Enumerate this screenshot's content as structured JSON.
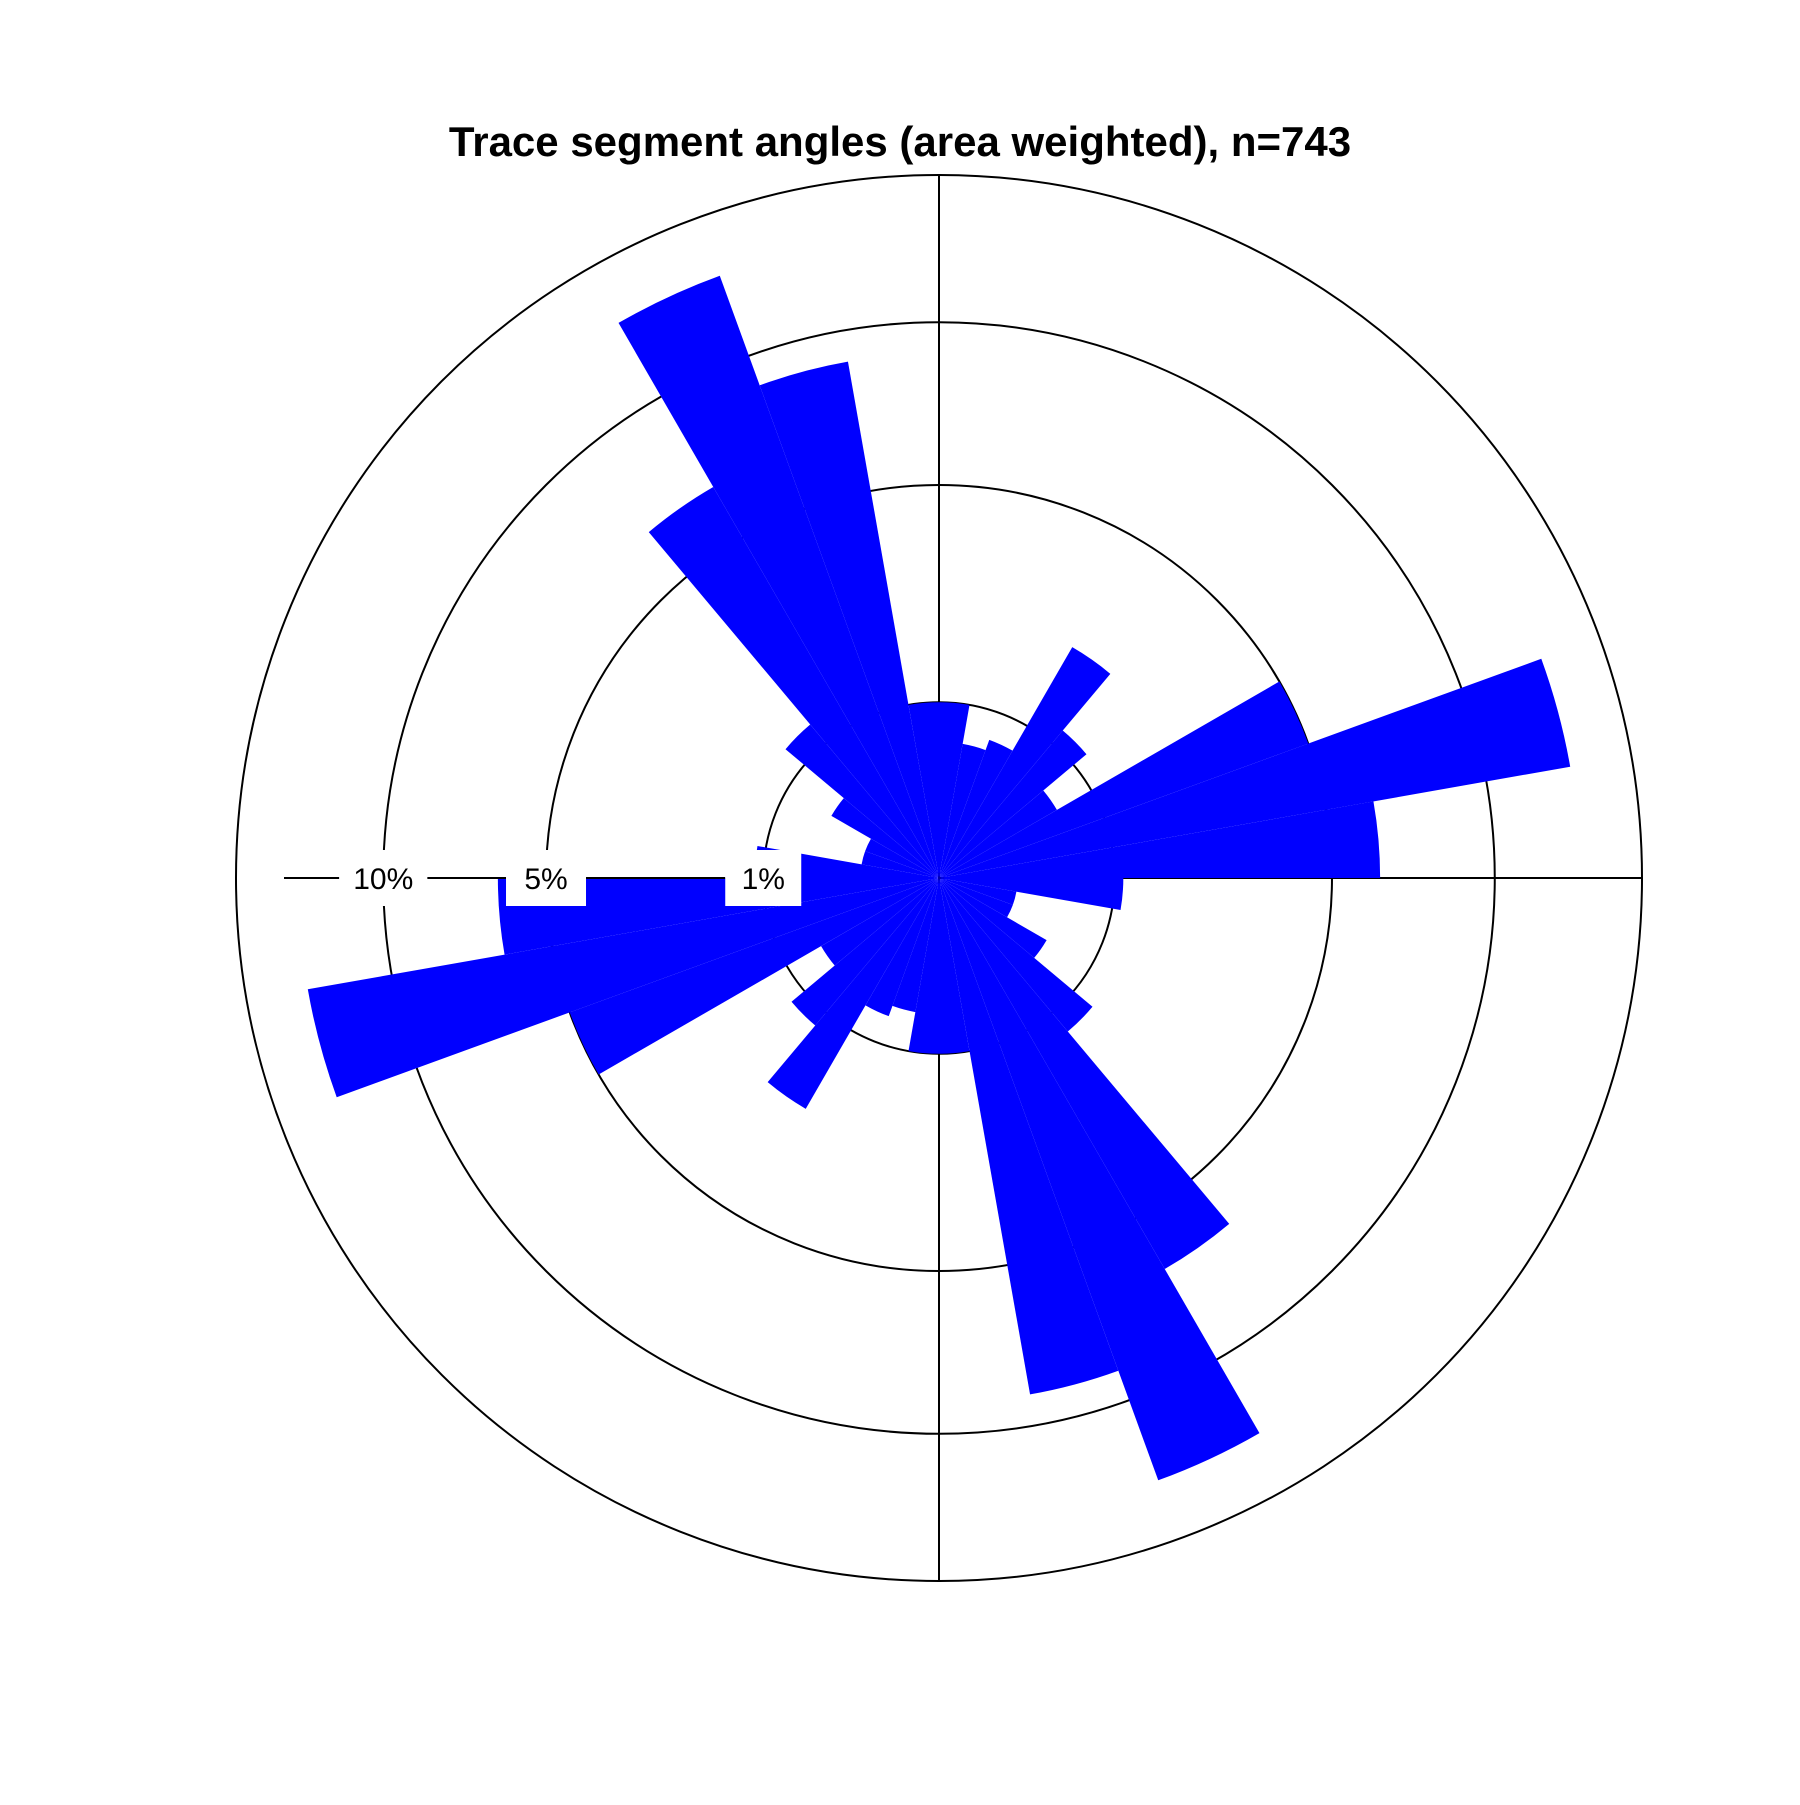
{
  "chart_data": {
    "type": "rose",
    "title": "Trace segment angles (area weighted), n=743",
    "bin_width_deg": 10,
    "scale": "sqrt",
    "bar_color": "#0000ff",
    "grid": true,
    "ring_labels": [
      "1%",
      "5%",
      "10%"
    ],
    "ring_values": [
      1,
      5,
      10
    ],
    "r_max": 16,
    "bins": [
      {
        "from": 0,
        "to": 10,
        "value": 1.0
      },
      {
        "from": 10,
        "to": 20,
        "value": 0.6
      },
      {
        "from": 20,
        "to": 30,
        "value": 0.7
      },
      {
        "from": 30,
        "to": 40,
        "value": 2.3
      },
      {
        "from": 40,
        "to": 50,
        "value": 1.2
      },
      {
        "from": 50,
        "to": 60,
        "value": 0.6
      },
      {
        "from": 60,
        "to": 70,
        "value": 5.0
      },
      {
        "from": 70,
        "to": 80,
        "value": 13.3
      },
      {
        "from": 80,
        "to": 90,
        "value": 6.3
      },
      {
        "from": 90,
        "to": 100,
        "value": 1.1
      },
      {
        "from": 100,
        "to": 110,
        "value": 0.2
      },
      {
        "from": 110,
        "to": 120,
        "value": 0.2
      },
      {
        "from": 120,
        "to": 130,
        "value": 0.5
      },
      {
        "from": 130,
        "to": 140,
        "value": 1.3
      },
      {
        "from": 140,
        "to": 150,
        "value": 6.6
      },
      {
        "from": 150,
        "to": 160,
        "value": 13.3
      },
      {
        "from": 160,
        "to": 170,
        "value": 8.9
      },
      {
        "from": 170,
        "to": 180,
        "value": 1.0
      },
      {
        "from": 180,
        "to": 190,
        "value": 1.0
      },
      {
        "from": 190,
        "to": 200,
        "value": 0.6
      },
      {
        "from": 200,
        "to": 210,
        "value": 0.7
      },
      {
        "from": 210,
        "to": 220,
        "value": 2.3
      },
      {
        "from": 220,
        "to": 230,
        "value": 1.2
      },
      {
        "from": 230,
        "to": 240,
        "value": 0.6
      },
      {
        "from": 240,
        "to": 250,
        "value": 5.0
      },
      {
        "from": 250,
        "to": 260,
        "value": 13.3
      },
      {
        "from": 260,
        "to": 270,
        "value": 6.3
      },
      {
        "from": 270,
        "to": 280,
        "value": 1.1
      },
      {
        "from": 280,
        "to": 290,
        "value": 0.2
      },
      {
        "from": 290,
        "to": 300,
        "value": 0.2
      },
      {
        "from": 300,
        "to": 310,
        "value": 0.5
      },
      {
        "from": 310,
        "to": 320,
        "value": 1.3
      },
      {
        "from": 320,
        "to": 330,
        "value": 6.6
      },
      {
        "from": 330,
        "to": 340,
        "value": 13.3
      },
      {
        "from": 340,
        "to": 350,
        "value": 8.9
      },
      {
        "from": 350,
        "to": 360,
        "value": 1.0
      }
    ]
  }
}
